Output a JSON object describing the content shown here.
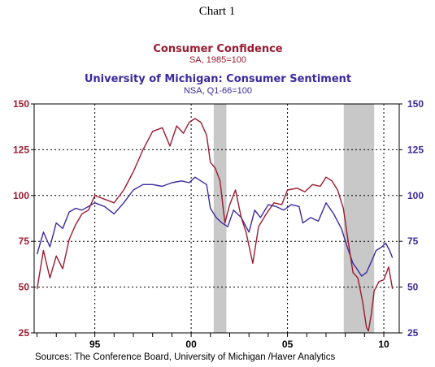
{
  "header": {
    "chart_label": "Chart 1"
  },
  "colors": {
    "confidence": "#9b1b30",
    "sentiment": "#3b2a9e",
    "recession": "#c8c8c8",
    "grid": "#000000"
  },
  "chart_data": {
    "type": "line",
    "series": [
      {
        "name": "Consumer Confidence",
        "subtitle": "SA, 1985=100",
        "axis": "left",
        "x": [
          1992.0,
          1992.33,
          1992.67,
          1993.0,
          1993.33,
          1993.67,
          1994.0,
          1994.33,
          1994.67,
          1995.0,
          1995.5,
          1996.0,
          1996.5,
          1997.0,
          1997.5,
          1998.0,
          1998.5,
          1998.9,
          1999.25,
          1999.6,
          1999.9,
          2000.2,
          2000.5,
          2000.8,
          2001.0,
          2001.25,
          2001.5,
          2001.75,
          2002.0,
          2002.3,
          2002.6,
          2002.85,
          2003.2,
          2003.5,
          2003.9,
          2004.3,
          2004.7,
          2005.0,
          2005.5,
          2005.9,
          2006.3,
          2006.7,
          2007.0,
          2007.3,
          2007.6,
          2007.9,
          2008.15,
          2008.4,
          2008.65,
          2008.9,
          2009.1,
          2009.2,
          2009.35,
          2009.5,
          2009.75,
          2010.0,
          2010.25,
          2010.45
        ],
        "values": [
          49,
          70,
          55,
          67,
          60,
          76,
          84,
          90,
          92,
          100,
          98,
          96,
          103,
          113,
          125,
          135,
          137,
          127,
          138,
          134,
          140,
          142,
          140,
          133,
          118,
          115,
          108,
          85,
          95,
          103,
          88,
          80,
          63,
          83,
          90,
          96,
          95,
          103,
          104,
          102,
          106,
          105,
          110,
          108,
          103,
          93,
          75,
          58,
          55,
          42,
          28,
          26,
          35,
          48,
          53,
          54,
          61,
          49
        ]
      },
      {
        "name": "University of Michigan: Consumer Sentiment",
        "subtitle": "NSA, Q1-66=100",
        "axis": "right",
        "x": [
          1992.0,
          1992.33,
          1992.67,
          1993.0,
          1993.33,
          1993.67,
          1994.0,
          1994.33,
          1994.67,
          1995.0,
          1995.5,
          1996.0,
          1996.5,
          1997.0,
          1997.5,
          1998.0,
          1998.5,
          1999.0,
          1999.5,
          1999.9,
          2000.2,
          2000.5,
          2000.8,
          2001.0,
          2001.3,
          2001.6,
          2001.9,
          2002.2,
          2002.6,
          2003.0,
          2003.3,
          2003.6,
          2004.0,
          2004.4,
          2004.8,
          2005.2,
          2005.6,
          2005.8,
          2006.2,
          2006.6,
          2007.0,
          2007.4,
          2007.8,
          2008.1,
          2008.4,
          2008.6,
          2008.85,
          2009.1,
          2009.4,
          2009.6,
          2009.9,
          2010.1,
          2010.3,
          2010.45
        ],
        "values": [
          68,
          80,
          72,
          85,
          82,
          91,
          93,
          92,
          94,
          96,
          94,
          90,
          96,
          103,
          106,
          106,
          105,
          107,
          108,
          107,
          110,
          108,
          106,
          93,
          88,
          85,
          83,
          92,
          88,
          80,
          92,
          88,
          95,
          94,
          92,
          95,
          94,
          85,
          88,
          86,
          96,
          90,
          82,
          72,
          63,
          60,
          56,
          58,
          65,
          70,
          72,
          74,
          70,
          66
        ]
      }
    ],
    "recessions": [
      [
        2001.17,
        2001.83
      ],
      [
        2007.92,
        2009.5
      ]
    ],
    "xlim": [
      1991.85,
      2010.8
    ],
    "ylim": [
      25,
      150
    ],
    "yticks": [
      25,
      50,
      75,
      100,
      125,
      150
    ],
    "ytick_labels_left": [
      "25",
      "50",
      "75",
      "100",
      "125",
      "150"
    ],
    "ytick_labels_right": [
      "25",
      "50",
      "75",
      "100",
      "125",
      "150"
    ],
    "xtick_positions": [
      1992,
      1993,
      1994,
      1995,
      1996,
      1997,
      1998,
      1999,
      2000,
      2001,
      2002,
      2003,
      2004,
      2005,
      2006,
      2007,
      2008,
      2009,
      2010
    ],
    "xlabel_positions": [
      1995,
      2000,
      2005,
      2010
    ],
    "xtick_labels": [
      "95",
      "00",
      "05",
      "10"
    ],
    "xgrid": [
      1995,
      2000,
      2005,
      2010
    ],
    "grid": true,
    "legend": "titles above plot"
  },
  "footer": {
    "source": "Sources:  The Conference Board, University of Michigan /Haver Analytics"
  }
}
